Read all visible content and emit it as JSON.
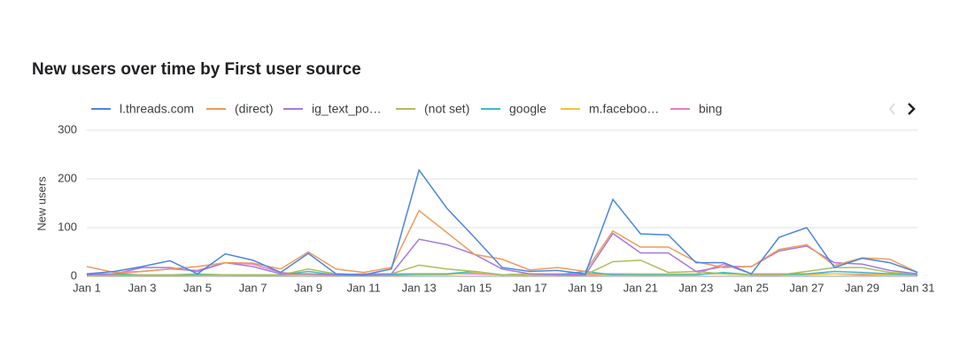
{
  "chart_data": {
    "type": "line",
    "title": "New users over time by First user source",
    "ylabel": "New users",
    "categories": [
      "Jan 1",
      null,
      "Jan 3",
      null,
      "Jan 5",
      null,
      "Jan 7",
      null,
      "Jan 9",
      null,
      "Jan 11",
      null,
      "Jan 13",
      null,
      "Jan 15",
      null,
      "Jan 17",
      null,
      "Jan 19",
      null,
      "Jan 21",
      null,
      "Jan 23",
      null,
      "Jan 25",
      null,
      "Jan 27",
      null,
      "Jan 29",
      null,
      "Jan 31"
    ],
    "ylim": [
      0,
      300
    ],
    "yticks": [
      0,
      100,
      200,
      300
    ],
    "grid": true,
    "series": [
      {
        "name": "l.threads.com",
        "color": "#4a86e0",
        "values": [
          5,
          10,
          20,
          32,
          5,
          46,
          33,
          8,
          47,
          5,
          3,
          15,
          218,
          140,
          80,
          18,
          10,
          12,
          5,
          158,
          87,
          85,
          28,
          28,
          5,
          80,
          100,
          18,
          37,
          28,
          8
        ]
      },
      {
        "name": "(direct)",
        "color": "#f09b59",
        "values": [
          20,
          8,
          10,
          15,
          20,
          28,
          27,
          15,
          50,
          15,
          8,
          18,
          135,
          90,
          45,
          35,
          13,
          18,
          10,
          93,
          60,
          60,
          30,
          18,
          20,
          55,
          65,
          22,
          38,
          35,
          8
        ]
      },
      {
        "name": "ig_text_po…",
        "color": "#a779e0",
        "values": [
          3,
          5,
          18,
          18,
          10,
          28,
          20,
          5,
          5,
          3,
          3,
          5,
          76,
          65,
          45,
          15,
          5,
          3,
          3,
          88,
          48,
          48,
          10,
          20,
          20,
          52,
          62,
          28,
          25,
          12,
          5
        ]
      },
      {
        "name": "(not set)",
        "color": "#a9bf5d",
        "values": [
          2,
          2,
          3,
          3,
          5,
          3,
          3,
          3,
          15,
          5,
          3,
          5,
          23,
          15,
          10,
          3,
          5,
          3,
          3,
          30,
          33,
          8,
          10,
          5,
          3,
          3,
          10,
          18,
          18,
          8,
          5
        ]
      },
      {
        "name": "google",
        "color": "#3cbdc9",
        "values": [
          3,
          5,
          3,
          3,
          3,
          3,
          3,
          3,
          10,
          3,
          2,
          3,
          5,
          5,
          10,
          3,
          5,
          3,
          10,
          3,
          3,
          3,
          3,
          8,
          3,
          3,
          5,
          10,
          8,
          5,
          3
        ]
      },
      {
        "name": "m.faceboo…",
        "color": "#f2c23c",
        "values": [
          1,
          2,
          2,
          2,
          3,
          3,
          2,
          2,
          3,
          2,
          2,
          2,
          3,
          3,
          8,
          3,
          2,
          3,
          2,
          3,
          5,
          5,
          5,
          5,
          3,
          3,
          3,
          5,
          5,
          3,
          3
        ]
      },
      {
        "name": "bing",
        "color": "#e87fc2",
        "values": [
          5,
          5,
          10,
          15,
          12,
          28,
          25,
          8,
          3,
          3,
          5,
          5,
          5,
          5,
          5,
          3,
          5,
          5,
          5,
          5,
          5,
          5,
          5,
          25,
          5,
          5,
          5,
          5,
          3,
          3,
          5
        ]
      }
    ]
  }
}
